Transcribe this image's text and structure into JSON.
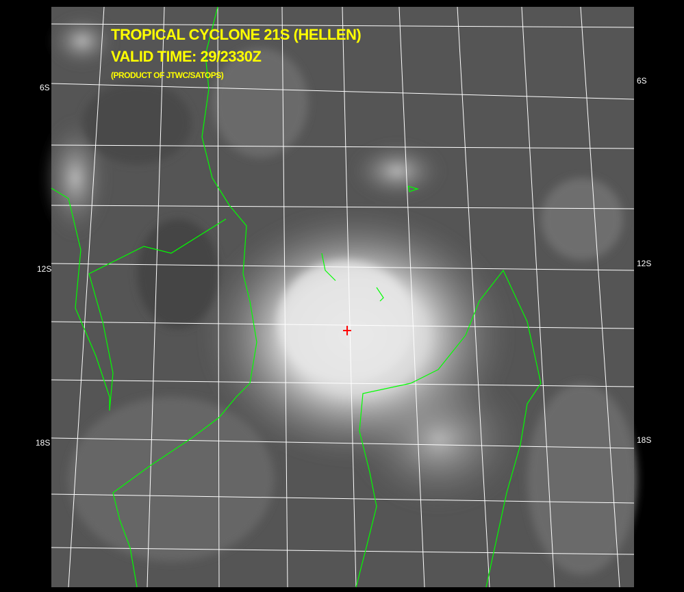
{
  "title": {
    "line1": "TROPICAL CYCLONE 21S (HELLEN)",
    "line2": "VALID TIME: 29/2330Z",
    "line3": "(PRODUCT OF JTWC/SATOPS)"
  },
  "lat_labels": {
    "left": [
      "6S",
      "12S",
      "18S"
    ],
    "right": [
      "6S",
      "12S",
      "18S"
    ]
  },
  "colors": {
    "background": "#000000",
    "title": "#ffff00",
    "coastline": "#00ff00",
    "grid": "#ffffff",
    "storm_center_marker": "#ff0000"
  },
  "icons": [
    "storm-center-cross-icon"
  ]
}
